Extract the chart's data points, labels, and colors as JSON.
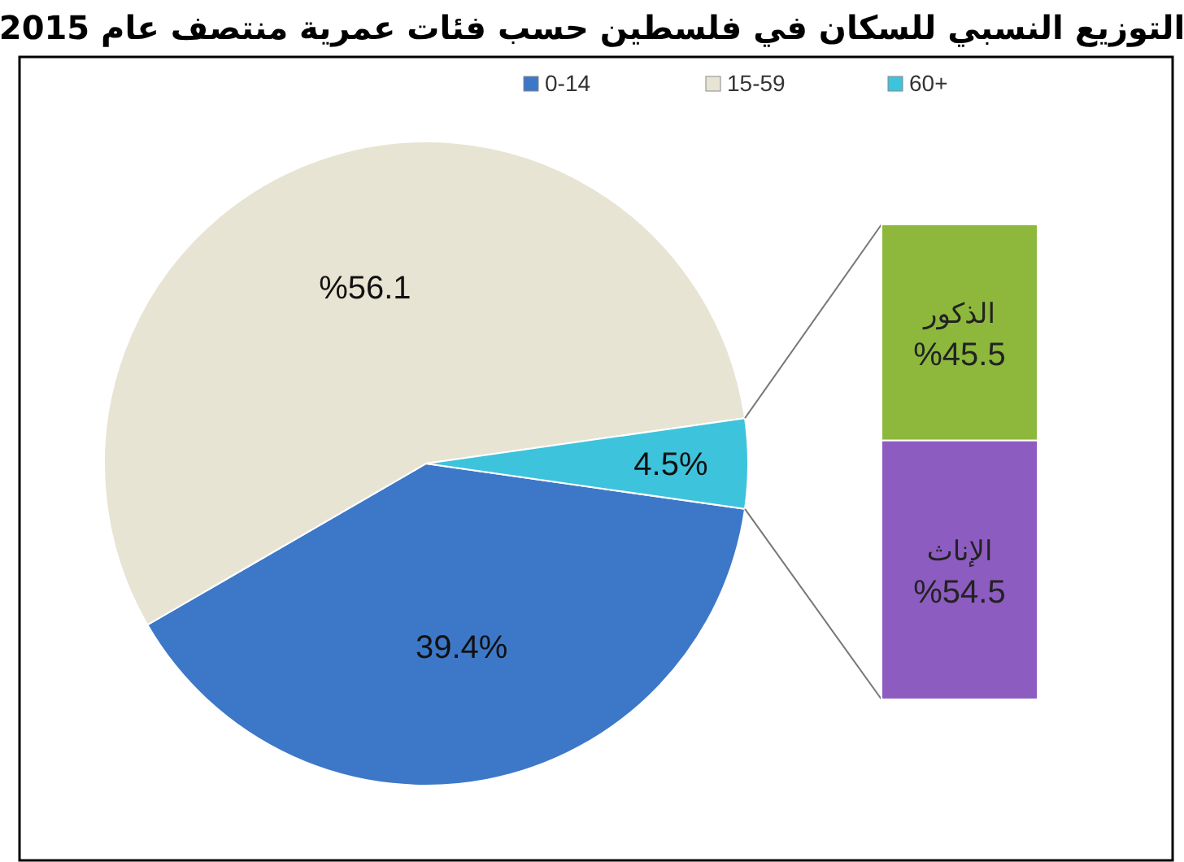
{
  "chart_data": [
    {
      "type": "pie",
      "title": "التوزيع النسبي للسكان في فلسطين حسب فئات عمرية منتصف عام 2015",
      "categories": [
        "0-14",
        "15-59",
        "60+"
      ],
      "values": [
        39.4,
        56.1,
        4.5
      ],
      "colors": [
        "#3d78c8",
        "#e8e4d3",
        "#3ec3dc"
      ],
      "value_labels": [
        "39.4%",
        "%56.1",
        "4.5%"
      ],
      "legend": "top"
    },
    {
      "type": "other",
      "categories": [
        "الذكور",
        "الإناث"
      ],
      "values": [
        45.5,
        54.5
      ],
      "colors": [
        "#8db83c",
        "#8d5cc0"
      ],
      "value_labels": [
        "%45.5",
        "%54.5"
      ]
    }
  ]
}
